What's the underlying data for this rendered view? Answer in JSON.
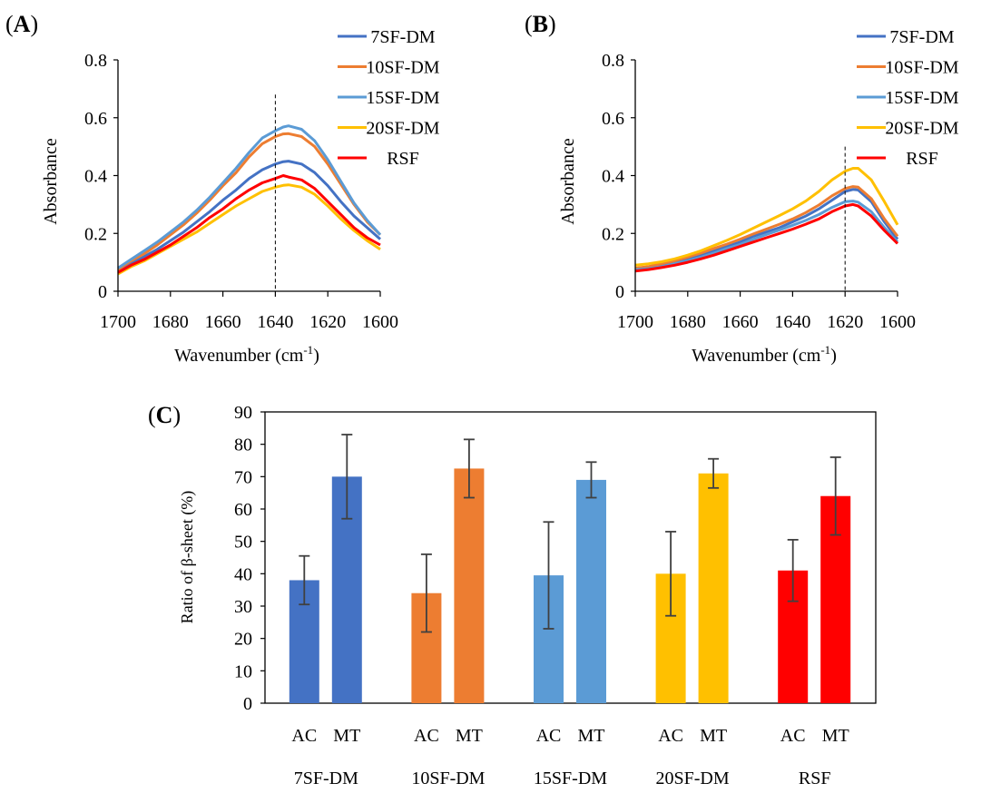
{
  "colors": {
    "7SF-DM": "#4472C4",
    "10SF-DM": "#ED7D31",
    "15SF-DM": "#5B9BD5",
    "20SF-DM": "#FFC000",
    "RSF": "#FF0000",
    "errorbar": "#404040",
    "axis": "#000000",
    "dashed": "#000000"
  },
  "chart_data": [
    {
      "panel": "(A)",
      "type": "line",
      "xlabel": "Wavenumber (cm",
      "xlabel_sup": "-1",
      "xlabel_end": ")",
      "ylabel": "Absorbance",
      "xlim": [
        1700,
        1600
      ],
      "ylim": [
        0,
        0.8
      ],
      "xticks": [
        "1700",
        "1680",
        "1660",
        "1640",
        "1620",
        "1600"
      ],
      "yticks": [
        "0",
        "0.2",
        "0.4",
        "0.6",
        "0.8"
      ],
      "dashed_line_x": 1640,
      "legend": [
        "7SF-DM",
        "10SF-DM",
        "15SF-DM",
        "20SF-DM",
        "RSF"
      ],
      "x": [
        1700,
        1695,
        1690,
        1685,
        1680,
        1675,
        1670,
        1665,
        1660,
        1655,
        1650,
        1645,
        1640,
        1637,
        1635,
        1630,
        1625,
        1620,
        1615,
        1610,
        1605,
        1600
      ],
      "series": [
        {
          "name": "7SF-DM",
          "values": [
            0.07,
            0.095,
            0.12,
            0.145,
            0.175,
            0.205,
            0.24,
            0.275,
            0.315,
            0.35,
            0.39,
            0.42,
            0.44,
            0.448,
            0.45,
            0.44,
            0.41,
            0.365,
            0.31,
            0.26,
            0.22,
            0.18
          ]
        },
        {
          "name": "10SF-DM",
          "values": [
            0.075,
            0.105,
            0.13,
            0.16,
            0.195,
            0.23,
            0.27,
            0.315,
            0.365,
            0.41,
            0.465,
            0.51,
            0.535,
            0.544,
            0.545,
            0.535,
            0.5,
            0.44,
            0.37,
            0.3,
            0.24,
            0.195
          ]
        },
        {
          "name": "15SF-DM",
          "values": [
            0.08,
            0.11,
            0.14,
            0.17,
            0.205,
            0.24,
            0.28,
            0.325,
            0.375,
            0.425,
            0.48,
            0.53,
            0.555,
            0.568,
            0.572,
            0.56,
            0.52,
            0.455,
            0.38,
            0.305,
            0.245,
            0.195
          ]
        },
        {
          "name": "20SF-DM",
          "values": [
            0.06,
            0.085,
            0.105,
            0.13,
            0.155,
            0.18,
            0.205,
            0.235,
            0.265,
            0.295,
            0.32,
            0.345,
            0.36,
            0.366,
            0.368,
            0.36,
            0.335,
            0.295,
            0.25,
            0.21,
            0.175,
            0.145
          ]
        },
        {
          "name": "RSF",
          "values": [
            0.065,
            0.09,
            0.11,
            0.135,
            0.16,
            0.19,
            0.22,
            0.255,
            0.285,
            0.32,
            0.35,
            0.375,
            0.39,
            0.4,
            0.395,
            0.385,
            0.355,
            0.31,
            0.265,
            0.22,
            0.185,
            0.16
          ]
        }
      ]
    },
    {
      "panel": "(B)",
      "type": "line",
      "xlabel": "Wavenumber (cm",
      "xlabel_sup": "-1",
      "xlabel_end": ")",
      "ylabel": "Absorbance",
      "xlim": [
        1700,
        1600
      ],
      "ylim": [
        0,
        0.8
      ],
      "xticks": [
        "1700",
        "1680",
        "1660",
        "1640",
        "1620",
        "1600"
      ],
      "yticks": [
        "0",
        "0.2",
        "0.4",
        "0.6",
        "0.8"
      ],
      "dashed_line_x": 1620,
      "legend": [
        "7SF-DM",
        "10SF-DM",
        "15SF-DM",
        "20SF-DM",
        "RSF"
      ],
      "x": [
        1700,
        1695,
        1690,
        1685,
        1680,
        1675,
        1670,
        1665,
        1660,
        1655,
        1650,
        1645,
        1640,
        1635,
        1630,
        1625,
        1620,
        1617,
        1615,
        1610,
        1605,
        1600
      ],
      "series": [
        {
          "name": "7SF-DM",
          "values": [
            0.075,
            0.08,
            0.09,
            0.1,
            0.112,
            0.125,
            0.14,
            0.155,
            0.17,
            0.19,
            0.205,
            0.22,
            0.24,
            0.26,
            0.285,
            0.315,
            0.345,
            0.352,
            0.35,
            0.31,
            0.24,
            0.18
          ]
        },
        {
          "name": "10SF-DM",
          "values": [
            0.08,
            0.085,
            0.095,
            0.105,
            0.118,
            0.132,
            0.148,
            0.163,
            0.18,
            0.198,
            0.215,
            0.232,
            0.25,
            0.272,
            0.298,
            0.33,
            0.355,
            0.362,
            0.36,
            0.32,
            0.25,
            0.19
          ]
        },
        {
          "name": "15SF-DM",
          "values": [
            0.075,
            0.078,
            0.085,
            0.095,
            0.105,
            0.118,
            0.132,
            0.148,
            0.162,
            0.18,
            0.196,
            0.212,
            0.228,
            0.245,
            0.265,
            0.29,
            0.31,
            0.312,
            0.308,
            0.275,
            0.22,
            0.17
          ]
        },
        {
          "name": "20SF-DM",
          "values": [
            0.09,
            0.095,
            0.102,
            0.112,
            0.125,
            0.14,
            0.158,
            0.176,
            0.196,
            0.218,
            0.24,
            0.262,
            0.285,
            0.312,
            0.345,
            0.385,
            0.415,
            0.425,
            0.425,
            0.385,
            0.31,
            0.23
          ]
        },
        {
          "name": "RSF",
          "values": [
            0.07,
            0.075,
            0.082,
            0.09,
            0.1,
            0.112,
            0.125,
            0.14,
            0.155,
            0.17,
            0.185,
            0.2,
            0.215,
            0.232,
            0.25,
            0.275,
            0.295,
            0.3,
            0.295,
            0.26,
            0.21,
            0.165
          ]
        }
      ]
    },
    {
      "panel": "(C)",
      "type": "bar",
      "ylabel": "Ratio of β-sheet (%)",
      "ylim": [
        0,
        90
      ],
      "yticks": [
        "0",
        "10",
        "20",
        "30",
        "40",
        "50",
        "60",
        "70",
        "80",
        "90"
      ],
      "groups": [
        "7SF-DM",
        "10SF-DM",
        "15SF-DM",
        "20SF-DM",
        "RSF"
      ],
      "categories": [
        "AC",
        "MT"
      ],
      "series": [
        {
          "name": "7SF-DM",
          "values": [
            38,
            70
          ],
          "errors": [
            7.5,
            13
          ]
        },
        {
          "name": "10SF-DM",
          "values": [
            34,
            72.5
          ],
          "errors": [
            12,
            9
          ]
        },
        {
          "name": "15SF-DM",
          "values": [
            39.5,
            69
          ],
          "errors": [
            16.5,
            5.5
          ]
        },
        {
          "name": "20SF-DM",
          "values": [
            40,
            71
          ],
          "errors": [
            13,
            4.5
          ]
        },
        {
          "name": "RSF",
          "values": [
            41,
            64
          ],
          "errors": [
            9.5,
            12
          ]
        }
      ]
    }
  ]
}
